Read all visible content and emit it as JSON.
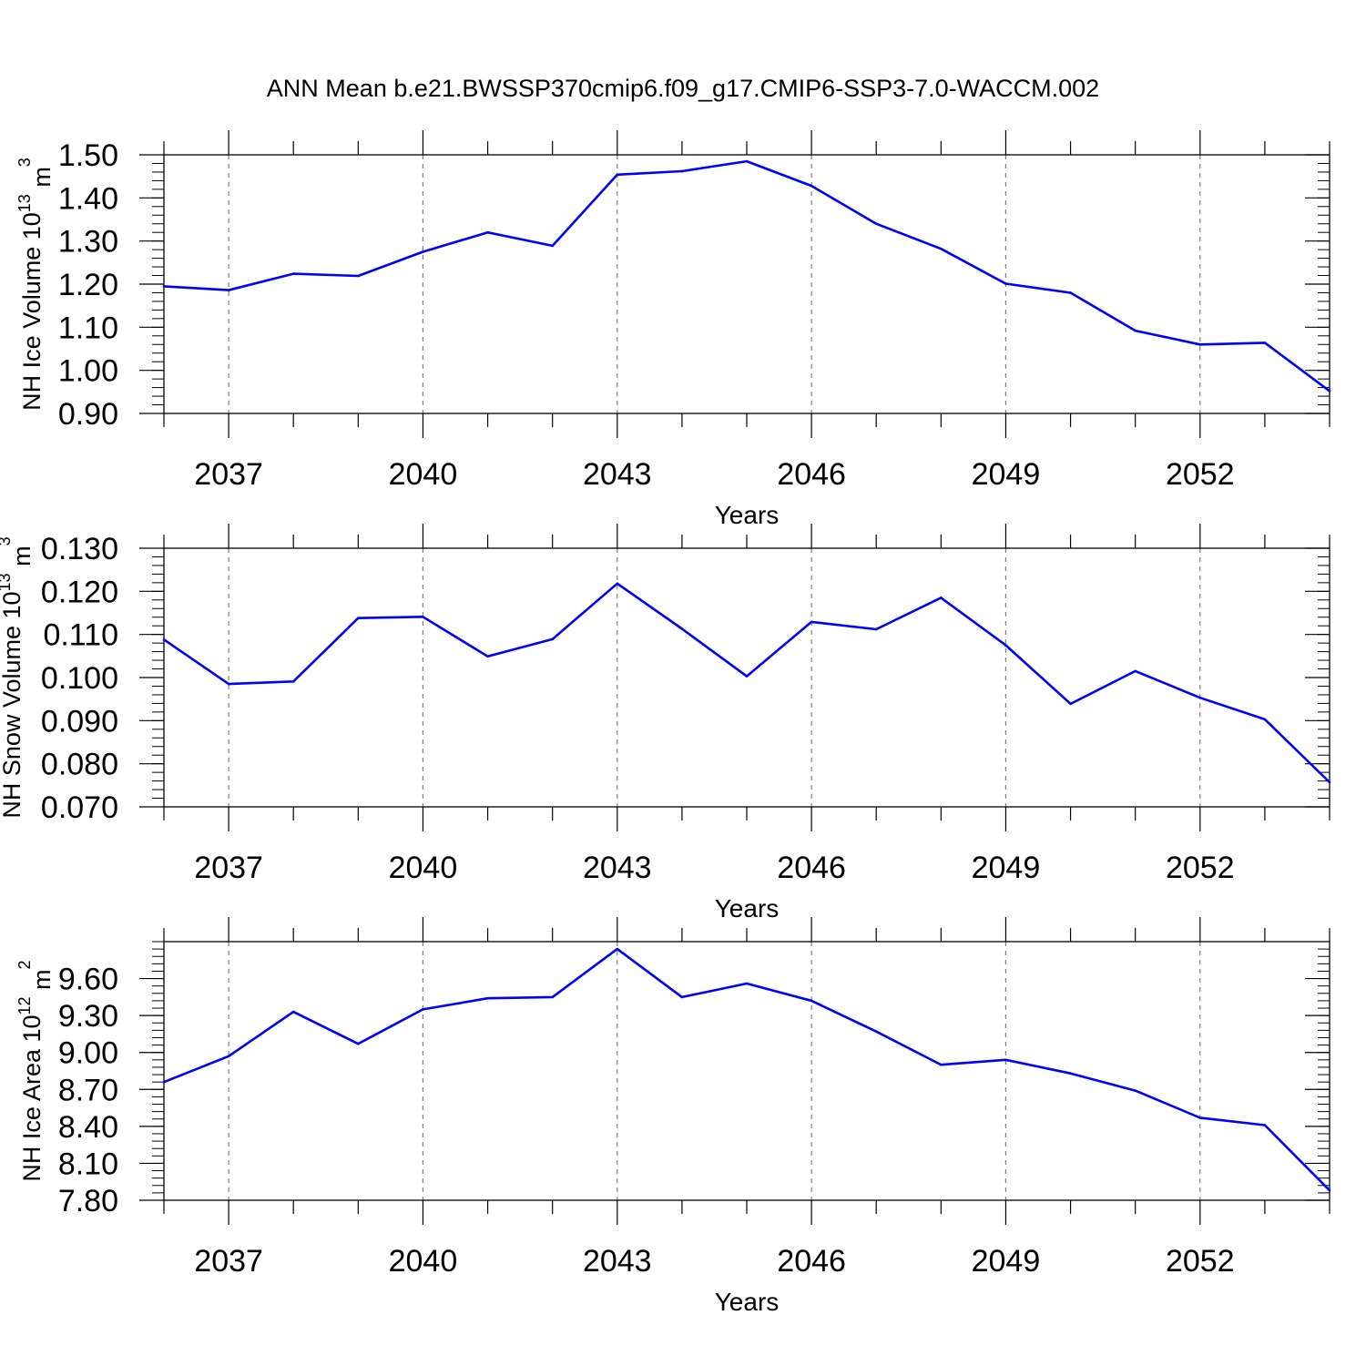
{
  "title": "ANN Mean b.e21.BWSSP370cmip6.f09_g17.CMIP6-SSP3-7.0-WACCM.002",
  "colors": {
    "line": "#0000ff",
    "axis": "#000000",
    "grid": "#7f7f7f"
  },
  "chart_data": [
    {
      "type": "line",
      "ylabel": "NH Ice Volume",
      "yunit_base": "10",
      "yunit_exp": "13",
      "yunit_suffix": " m",
      "yunit_suffix_exp": "3",
      "xlabel": "Years",
      "xlim": [
        2036,
        2054
      ],
      "ylim": [
        0.9,
        1.5
      ],
      "yticks": [
        "0.90",
        "1.00",
        "1.10",
        "1.20",
        "1.30",
        "1.40",
        "1.50"
      ],
      "xticks": [
        "2037",
        "2040",
        "2043",
        "2046",
        "2049",
        "2052"
      ],
      "grid": "vertical dashed at labeled years",
      "x": [
        2036,
        2037,
        2038,
        2039,
        2040,
        2041,
        2042,
        2043,
        2044,
        2045,
        2046,
        2047,
        2048,
        2049,
        2050,
        2051,
        2052,
        2053,
        2054
      ],
      "values": [
        1.195,
        1.186,
        1.224,
        1.219,
        1.275,
        1.32,
        1.289,
        1.454,
        1.462,
        1.485,
        1.428,
        1.34,
        1.282,
        1.201,
        1.18,
        1.092,
        1.06,
        1.064,
        0.952
      ]
    },
    {
      "type": "line",
      "ylabel": "NH Snow Volume",
      "yunit_base": "10",
      "yunit_exp": "13",
      "yunit_suffix": " m",
      "yunit_suffix_exp": "3",
      "xlabel": "Years",
      "xlim": [
        2036,
        2054
      ],
      "ylim": [
        0.07,
        0.13
      ],
      "yticks": [
        "0.070",
        "0.080",
        "0.090",
        "0.100",
        "0.110",
        "0.120",
        "0.130"
      ],
      "xticks": [
        "2037",
        "2040",
        "2043",
        "2046",
        "2049",
        "2052"
      ],
      "grid": "vertical dashed at labeled years",
      "x": [
        2036,
        2037,
        2038,
        2039,
        2040,
        2041,
        2042,
        2043,
        2044,
        2045,
        2046,
        2047,
        2048,
        2049,
        2050,
        2051,
        2052,
        2053,
        2054
      ],
      "values": [
        0.1088,
        0.0985,
        0.0991,
        0.1138,
        0.1141,
        0.1049,
        0.1089,
        0.1218,
        0.1113,
        0.1003,
        0.1129,
        0.1112,
        0.1185,
        0.1075,
        0.0939,
        0.1015,
        0.0953,
        0.0903,
        0.0757
      ]
    },
    {
      "type": "line",
      "ylabel": "NH Ice Area",
      "yunit_base": "10",
      "yunit_exp": "12",
      "yunit_suffix": " m",
      "yunit_suffix_exp": "2",
      "xlabel": "Years",
      "xlim": [
        2036,
        2054
      ],
      "ylim": [
        7.8,
        9.9
      ],
      "yticks": [
        "7.80",
        "8.10",
        "8.40",
        "8.70",
        "9.00",
        "9.30",
        "9.60"
      ],
      "xticks": [
        "2037",
        "2040",
        "2043",
        "2046",
        "2049",
        "2052"
      ],
      "grid": "vertical dashed at labeled years",
      "x": [
        2036,
        2037,
        2038,
        2039,
        2040,
        2041,
        2042,
        2043,
        2044,
        2045,
        2046,
        2047,
        2048,
        2049,
        2050,
        2051,
        2052,
        2053,
        2054
      ],
      "values": [
        8.76,
        8.97,
        9.33,
        9.07,
        9.35,
        9.44,
        9.45,
        9.84,
        9.45,
        9.56,
        9.42,
        9.17,
        8.9,
        8.94,
        8.83,
        8.69,
        8.47,
        8.41,
        7.88
      ]
    }
  ]
}
